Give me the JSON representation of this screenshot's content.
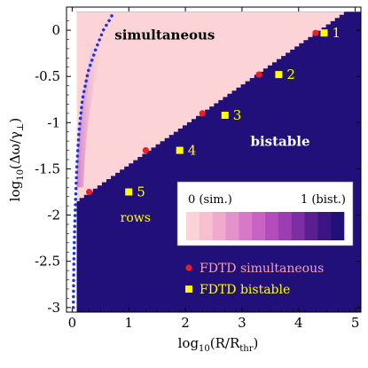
{
  "chart_data": {
    "type": "heatmap",
    "xlabel_main": "log",
    "xlabel_sub": "10",
    "xlabel_rest": "(R/R",
    "xlabel_rest_sub": "thr",
    "xlabel_close": ")",
    "ylabel_main": "log",
    "ylabel_sub": "10",
    "ylabel_rest": "(Δω/γ",
    "ylabel_rest_sub": "⊥",
    "ylabel_close": ")",
    "xlim": [
      -0.1,
      5.1
    ],
    "ylim": [
      -3.05,
      0.25
    ],
    "x_ticks": [
      {
        "value": 0,
        "label": "0"
      },
      {
        "value": 1,
        "label": "1"
      },
      {
        "value": 2,
        "label": "2"
      },
      {
        "value": 3,
        "label": "3"
      },
      {
        "value": 4,
        "label": "4"
      },
      {
        "value": 5,
        "label": "5"
      }
    ],
    "y_ticks": [
      {
        "value": 0,
        "label": "0"
      },
      {
        "value": -0.5,
        "label": "-0.5"
      },
      {
        "value": -1,
        "label": "-1"
      },
      {
        "value": -1.5,
        "label": "-1.5"
      },
      {
        "value": -2,
        "label": "-2"
      },
      {
        "value": -2.5,
        "label": "-2.5"
      },
      {
        "value": -3,
        "label": "-3"
      }
    ],
    "region_labels": {
      "simultaneous": "simultaneous",
      "bistable": "bistable",
      "rows": "rows"
    },
    "colorbar": {
      "min_label": "0 (sim.)",
      "max_label": "1 (bist.)",
      "colors": [
        "#fcd3d6",
        "#f7c0cf",
        "#f0aace",
        "#e591cb",
        "#d879c7",
        "#c962c2",
        "#b54cbc",
        "#9c3db1",
        "#7d2ea3",
        "#5a1f92",
        "#3a1583",
        "#22107a"
      ]
    },
    "fdtd_simultaneous": {
      "name": "FDTD simultaneous",
      "color": "#ee1c24",
      "points": [
        [
          0.3,
          -1.75
        ],
        [
          1.3,
          -1.3
        ],
        [
          2.3,
          -0.9
        ],
        [
          3.3,
          -0.48
        ],
        [
          4.3,
          -0.03
        ]
      ]
    },
    "fdtd_bistable": {
      "name": "FDTD bistable",
      "color": "#ffff00",
      "labels": [
        "5",
        "4",
        "3",
        "2",
        "1"
      ],
      "points": [
        [
          1.0,
          -1.75
        ],
        [
          1.9,
          -1.3
        ],
        [
          2.7,
          -0.92
        ],
        [
          3.65,
          -0.48
        ],
        [
          4.45,
          -0.03
        ]
      ]
    },
    "boundary_line": {
      "color": "#2233dd",
      "points": [
        [
          0.02,
          -3.0
        ],
        [
          0.03,
          -2.5
        ],
        [
          0.05,
          -2.0
        ],
        [
          0.08,
          -1.5
        ],
        [
          0.12,
          -1.1
        ],
        [
          0.18,
          -0.75
        ],
        [
          0.28,
          -0.45
        ],
        [
          0.42,
          -0.2
        ],
        [
          0.55,
          0.0
        ],
        [
          0.65,
          0.1
        ],
        [
          0.72,
          0.18
        ]
      ]
    },
    "colors": {
      "bistable": "#22107a",
      "simultaneous": "#fcd3d6",
      "frame": "#000000"
    }
  }
}
